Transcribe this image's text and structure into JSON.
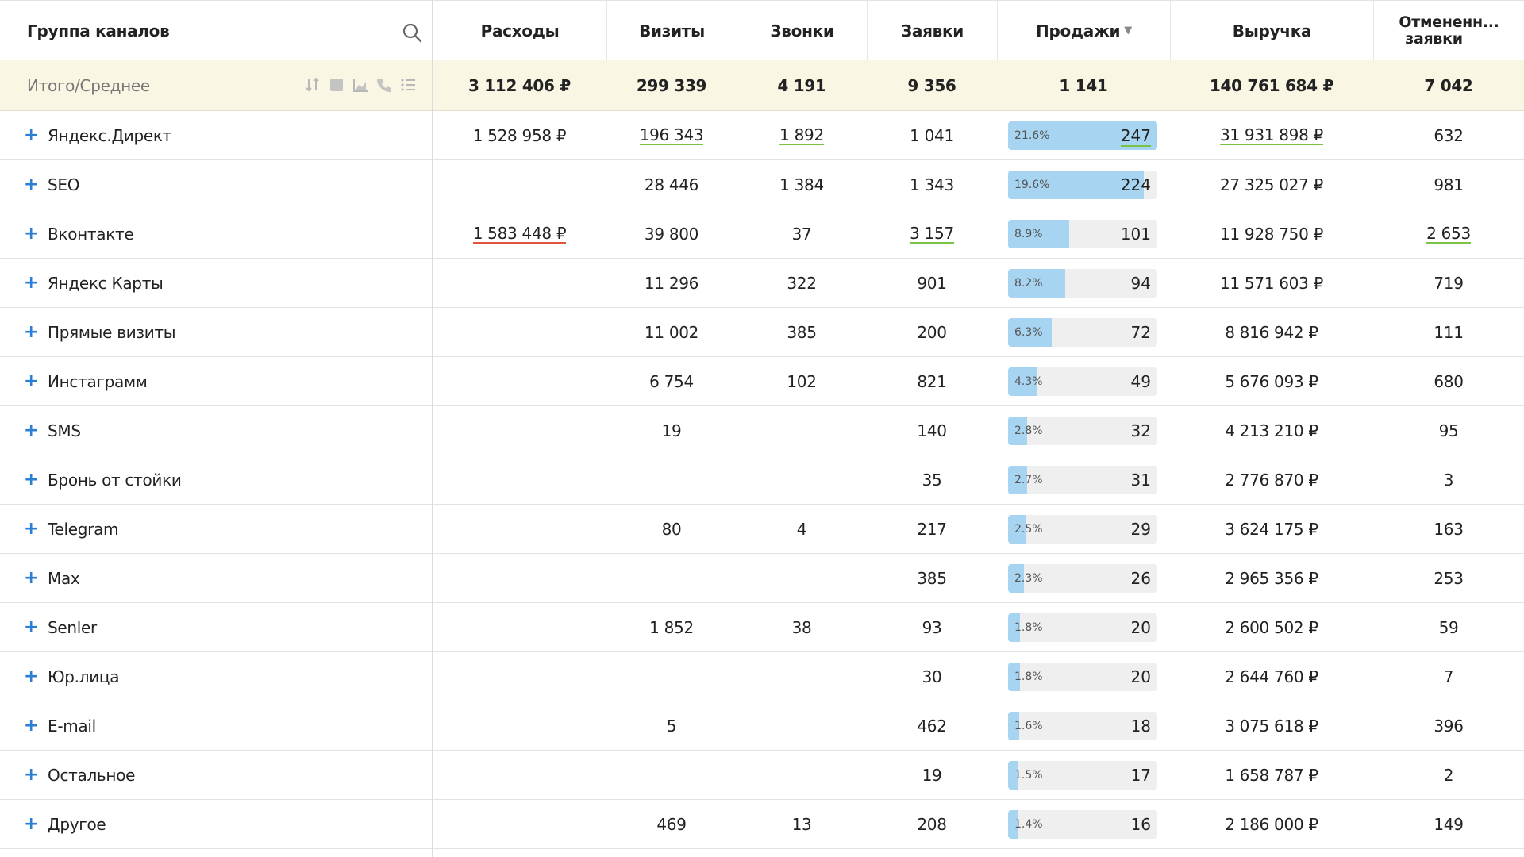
{
  "header": {
    "group": "Группа каналов",
    "expenses": "Расходы",
    "visits": "Визиты",
    "calls": "Звонки",
    "requests": "Заявки",
    "sales": "Продажи",
    "sales_sort": "▼",
    "revenue": "Выручка",
    "cancelled_l1": "Отмененн...",
    "cancelled_l2": "заявки"
  },
  "total": {
    "label": "Итого/Среднее",
    "expenses": "3 112 406 ₽",
    "visits": "299 339",
    "calls": "4 191",
    "requests": "9 356",
    "sales": "1 141",
    "revenue": "140 761 684 ₽",
    "cancelled": "7 042"
  },
  "colors": {
    "accent": "#2a7fd4",
    "bar": "#a7d4f1",
    "good": "#7cc243",
    "bad": "#e0533d",
    "total_bg": "#faf6e4"
  },
  "rows": [
    {
      "name": "Яндекс.Директ",
      "expenses": "1 528 958 ₽",
      "visits": "196 343",
      "visits_ul": "green",
      "calls": "1 892",
      "calls_ul": "green",
      "requests": "1 041",
      "sales_pct": "21.6%",
      "sales_frac": 1.0,
      "sales": "247",
      "sales_ul": "green",
      "revenue": "31 931 898 ₽",
      "revenue_ul": "green",
      "cancelled": "632"
    },
    {
      "name": "SEO",
      "expenses": "",
      "visits": "28 446",
      "calls": "1 384",
      "requests": "1 343",
      "sales_pct": "19.6%",
      "sales_frac": 0.907,
      "sales": "224",
      "revenue": "27 325 027 ₽",
      "cancelled": "981"
    },
    {
      "name": "Вконтакте",
      "expenses": "1 583 448 ₽",
      "expenses_ul": "red",
      "visits": "39 800",
      "calls": "37",
      "requests": "3 157",
      "requests_ul": "green",
      "sales_pct": "8.9%",
      "sales_frac": 0.409,
      "sales": "101",
      "revenue": "11 928 750 ₽",
      "cancelled": "2 653",
      "cancelled_ul": "green"
    },
    {
      "name": "Яндекс Карты",
      "expenses": "",
      "visits": "11 296",
      "calls": "322",
      "requests": "901",
      "sales_pct": "8.2%",
      "sales_frac": 0.381,
      "sales": "94",
      "revenue": "11 571 603 ₽",
      "cancelled": "719"
    },
    {
      "name": "Прямые визиты",
      "expenses": "",
      "visits": "11 002",
      "calls": "385",
      "requests": "200",
      "sales_pct": "6.3%",
      "sales_frac": 0.291,
      "sales": "72",
      "revenue": "8 816 942 ₽",
      "cancelled": "111"
    },
    {
      "name": "Инстаграмм",
      "expenses": "",
      "visits": "6 754",
      "calls": "102",
      "requests": "821",
      "sales_pct": "4.3%",
      "sales_frac": 0.198,
      "sales": "49",
      "revenue": "5 676 093 ₽",
      "cancelled": "680"
    },
    {
      "name": "SMS",
      "expenses": "",
      "visits": "19",
      "calls": "",
      "requests": "140",
      "sales_pct": "2.8%",
      "sales_frac": 0.13,
      "sales": "32",
      "revenue": "4 213 210 ₽",
      "cancelled": "95"
    },
    {
      "name": "Бронь от стойки",
      "expenses": "",
      "visits": "",
      "calls": "",
      "requests": "35",
      "sales_pct": "2.7%",
      "sales_frac": 0.126,
      "sales": "31",
      "revenue": "2 776 870 ₽",
      "cancelled": "3"
    },
    {
      "name": "Telegram",
      "expenses": "",
      "visits": "80",
      "calls": "4",
      "requests": "217",
      "sales_pct": "2.5%",
      "sales_frac": 0.117,
      "sales": "29",
      "revenue": "3 624 175 ₽",
      "cancelled": "163"
    },
    {
      "name": "Max",
      "expenses": "",
      "visits": "",
      "calls": "",
      "requests": "385",
      "sales_pct": "2.3%",
      "sales_frac": 0.105,
      "sales": "26",
      "revenue": "2 965 356 ₽",
      "cancelled": "253"
    },
    {
      "name": "Senler",
      "expenses": "",
      "visits": "1 852",
      "calls": "38",
      "requests": "93",
      "sales_pct": "1.8%",
      "sales_frac": 0.081,
      "sales": "20",
      "revenue": "2 600 502 ₽",
      "cancelled": "59"
    },
    {
      "name": "Юр.лица",
      "expenses": "",
      "visits": "",
      "calls": "",
      "requests": "30",
      "sales_pct": "1.8%",
      "sales_frac": 0.081,
      "sales": "20",
      "revenue": "2 644 760 ₽",
      "cancelled": "7"
    },
    {
      "name": "E-mail",
      "expenses": "",
      "visits": "5",
      "calls": "",
      "requests": "462",
      "sales_pct": "1.6%",
      "sales_frac": 0.073,
      "sales": "18",
      "revenue": "3 075 618 ₽",
      "cancelled": "396"
    },
    {
      "name": "Остальное",
      "expenses": "",
      "visits": "",
      "calls": "",
      "requests": "19",
      "sales_pct": "1.5%",
      "sales_frac": 0.069,
      "sales": "17",
      "revenue": "1 658 787 ₽",
      "cancelled": "2"
    },
    {
      "name": "Другое",
      "expenses": "",
      "visits": "469",
      "calls": "13",
      "requests": "208",
      "sales_pct": "1.4%",
      "sales_frac": 0.065,
      "sales": "16",
      "revenue": "2 186 000 ₽",
      "cancelled": "149"
    }
  ]
}
